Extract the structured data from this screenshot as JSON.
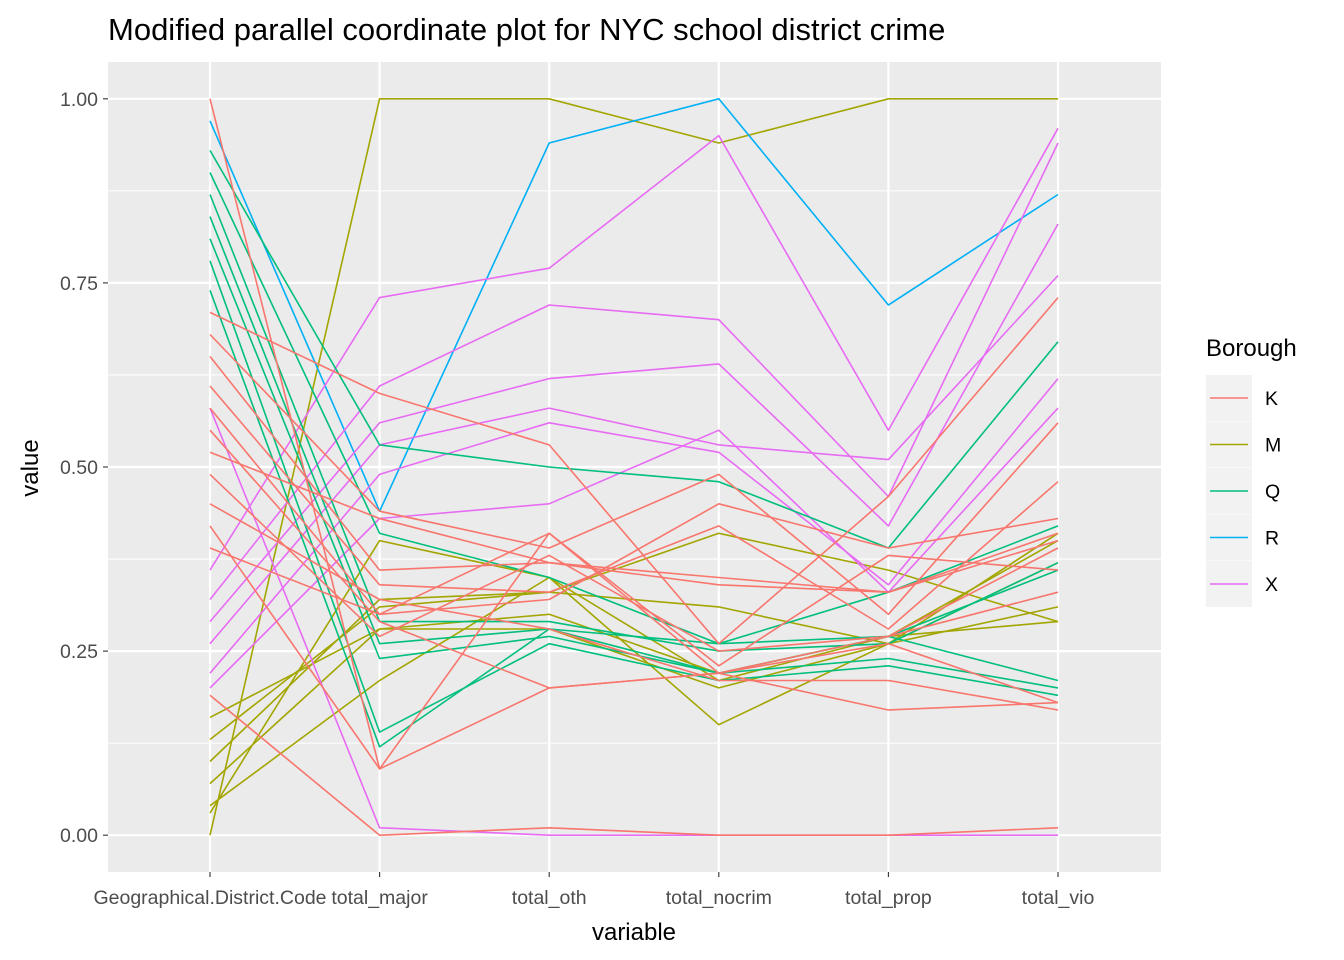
{
  "chart_data": {
    "type": "line",
    "title": "Modified parallel coordinate plot for NYC school district crime",
    "xlabel": "variable",
    "ylabel": "value",
    "ylim": [
      -0.05,
      1.05
    ],
    "yticks": [
      "0.00",
      "0.25",
      "0.50",
      "0.75",
      "1.00"
    ],
    "ytick_values": [
      0,
      0.25,
      0.5,
      0.75,
      1.0
    ],
    "categories": [
      "Geographical.District.Code",
      "total_major",
      "total_oth",
      "total_nocrim",
      "total_prop",
      "total_vio"
    ],
    "grid": true,
    "legend": {
      "title": "Borough",
      "position": "right",
      "entries": [
        {
          "key": "K",
          "color": "#F8766D"
        },
        {
          "key": "M",
          "color": "#A3A500"
        },
        {
          "key": "Q",
          "color": "#00BF7D"
        },
        {
          "key": "R",
          "color": "#00B0F6"
        },
        {
          "key": "X",
          "color": "#E76BF3"
        }
      ]
    },
    "series": [
      {
        "group": "M",
        "values": [
          0.0,
          1.0,
          1.0,
          0.94,
          1.0,
          1.0
        ]
      },
      {
        "group": "M",
        "values": [
          0.03,
          0.4,
          0.35,
          0.21,
          0.27,
          0.4
        ]
      },
      {
        "group": "M",
        "values": [
          0.07,
          0.28,
          0.28,
          0.2,
          0.26,
          0.37
        ]
      },
      {
        "group": "M",
        "values": [
          0.1,
          0.32,
          0.33,
          0.41,
          0.36,
          0.29
        ]
      },
      {
        "group": "M",
        "values": [
          0.13,
          0.31,
          0.33,
          0.31,
          0.26,
          0.31
        ]
      },
      {
        "group": "M",
        "values": [
          0.16,
          0.28,
          0.3,
          0.22,
          0.27,
          0.29
        ]
      },
      {
        "group": "M",
        "values": [
          0.04,
          0.21,
          0.35,
          0.15,
          0.26,
          0.41
        ]
      },
      {
        "group": "R",
        "values": [
          0.97,
          0.44,
          0.94,
          1.0,
          0.72,
          0.87
        ]
      },
      {
        "group": "X",
        "values": [
          0.58,
          0.01,
          0.0,
          0.0,
          0.0,
          0.0
        ]
      },
      {
        "group": "X",
        "values": [
          0.36,
          0.73,
          0.77,
          0.95,
          0.55,
          0.96
        ]
      },
      {
        "group": "X",
        "values": [
          0.32,
          0.61,
          0.72,
          0.7,
          0.46,
          0.94
        ]
      },
      {
        "group": "X",
        "values": [
          0.29,
          0.56,
          0.62,
          0.64,
          0.42,
          0.83
        ]
      },
      {
        "group": "X",
        "values": [
          0.26,
          0.53,
          0.58,
          0.53,
          0.51,
          0.76
        ]
      },
      {
        "group": "X",
        "values": [
          0.22,
          0.49,
          0.56,
          0.52,
          0.34,
          0.62
        ]
      },
      {
        "group": "X",
        "values": [
          0.2,
          0.43,
          0.45,
          0.55,
          0.33,
          0.58
        ]
      },
      {
        "group": "Q",
        "values": [
          0.93,
          0.53,
          0.5,
          0.48,
          0.39,
          0.67
        ]
      },
      {
        "group": "Q",
        "values": [
          0.9,
          0.41,
          0.35,
          0.26,
          0.33,
          0.42
        ]
      },
      {
        "group": "Q",
        "values": [
          0.87,
          0.29,
          0.29,
          0.25,
          0.26,
          0.37
        ]
      },
      {
        "group": "Q",
        "values": [
          0.84,
          0.26,
          0.28,
          0.26,
          0.27,
          0.36
        ]
      },
      {
        "group": "Q",
        "values": [
          0.81,
          0.24,
          0.27,
          0.22,
          0.24,
          0.2
        ]
      },
      {
        "group": "Q",
        "values": [
          0.78,
          0.14,
          0.26,
          0.21,
          0.23,
          0.19
        ]
      },
      {
        "group": "Q",
        "values": [
          0.74,
          0.12,
          0.28,
          0.22,
          0.27,
          0.21
        ]
      },
      {
        "group": "K",
        "values": [
          1.0,
          0.09,
          0.41,
          0.23,
          0.38,
          0.36
        ]
      },
      {
        "group": "K",
        "values": [
          0.71,
          0.6,
          0.53,
          0.26,
          0.46,
          0.73
        ]
      },
      {
        "group": "K",
        "values": [
          0.68,
          0.44,
          0.39,
          0.49,
          0.3,
          0.56
        ]
      },
      {
        "group": "K",
        "values": [
          0.65,
          0.36,
          0.37,
          0.34,
          0.33,
          0.41
        ]
      },
      {
        "group": "K",
        "values": [
          0.61,
          0.34,
          0.33,
          0.42,
          0.28,
          0.48
        ]
      },
      {
        "group": "K",
        "values": [
          0.58,
          0.3,
          0.32,
          0.45,
          0.39,
          0.43
        ]
      },
      {
        "group": "K",
        "values": [
          0.55,
          0.29,
          0.2,
          0.22,
          0.26,
          0.18
        ]
      },
      {
        "group": "K",
        "values": [
          0.52,
          0.43,
          0.37,
          0.35,
          0.33,
          0.4
        ]
      },
      {
        "group": "K",
        "values": [
          0.49,
          0.27,
          0.38,
          0.25,
          0.27,
          0.33
        ]
      },
      {
        "group": "K",
        "values": [
          0.45,
          0.32,
          0.28,
          0.21,
          0.21,
          0.17
        ]
      },
      {
        "group": "K",
        "values": [
          0.42,
          0.09,
          0.2,
          0.22,
          0.17,
          0.18
        ]
      },
      {
        "group": "K",
        "values": [
          0.39,
          0.3,
          0.41,
          0.22,
          0.27,
          0.39
        ]
      },
      {
        "group": "K",
        "values": [
          0.19,
          0.0,
          0.01,
          0.0,
          0.0,
          0.01
        ]
      }
    ]
  }
}
